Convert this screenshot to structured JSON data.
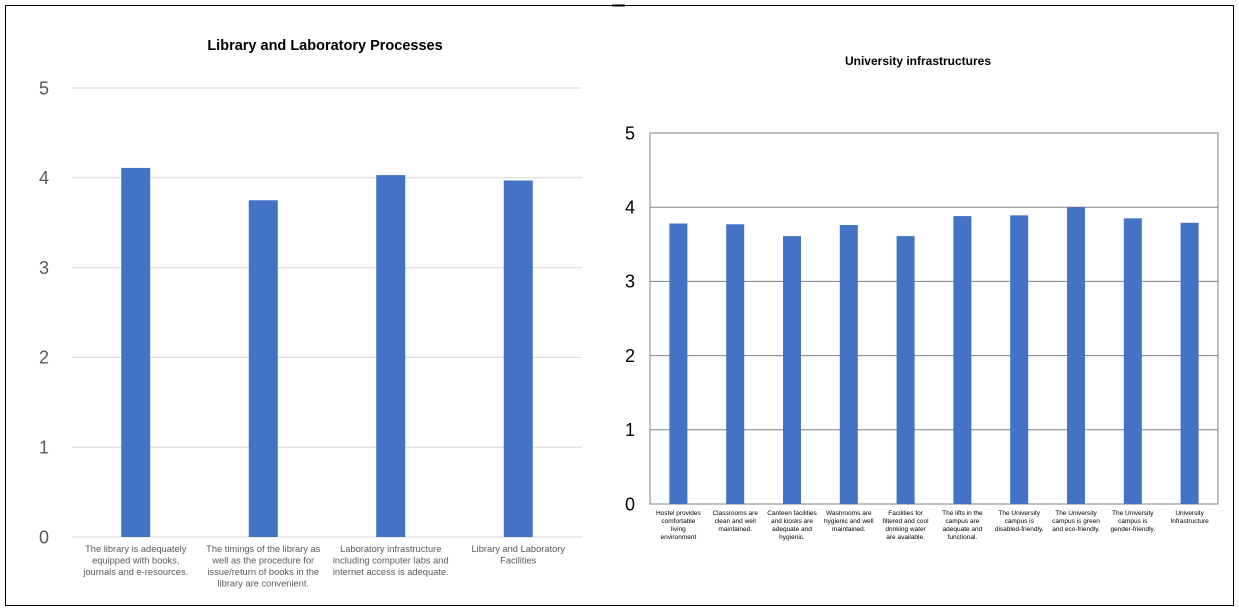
{
  "chart_data": [
    {
      "type": "bar",
      "title": "Library and Laboratory Processes",
      "xlabel": "",
      "ylabel": "",
      "ylim": [
        0,
        5
      ],
      "yticks": [
        0,
        1,
        2,
        3,
        4,
        5
      ],
      "grid": true,
      "legend": "none",
      "color": "#4472C4",
      "categories": [
        [
          "The library is adequately",
          "equipped with books,",
          "journals and e-resources."
        ],
        [
          "The timings of the library as",
          "well as the procedure for",
          "issue/return of books in the",
          "library are convenient."
        ],
        [
          "Laboratory infrastructure",
          "including computer  labs and",
          "internet access is adequate."
        ],
        [
          "Library and Laboratory",
          "Facilities"
        ]
      ],
      "values": [
        4.11,
        3.75,
        4.03,
        3.97
      ]
    },
    {
      "type": "bar",
      "title": "University infrastructures",
      "xlabel": "",
      "ylabel": "",
      "ylim": [
        0,
        5
      ],
      "yticks": [
        0,
        1,
        2,
        3,
        4,
        5
      ],
      "grid": true,
      "legend": "none",
      "color": "#4472C4",
      "categories": [
        [
          "Hostel provides",
          "comfortable",
          "living",
          "environment"
        ],
        [
          "Classrooms are",
          "clean and well",
          "maintained."
        ],
        [
          "Canteen facilities",
          "and kiosks are",
          "adequate and",
          "hygienic."
        ],
        [
          "Washrooms are",
          "hygienic and well",
          "maintained."
        ],
        [
          "Facilities for",
          "filtered and cool",
          "drinking water",
          "are available."
        ],
        [
          "The lifts in the",
          "campus are",
          "adequate and",
          "functional."
        ],
        [
          "The University",
          "campus is",
          "disabled-friendly."
        ],
        [
          "The University",
          "campus is green",
          "and eco-friendly."
        ],
        [
          "The University",
          "campus is",
          "gender-friendly."
        ],
        [
          "University",
          "Infrastructure"
        ]
      ],
      "values": [
        3.78,
        3.77,
        3.61,
        3.76,
        3.61,
        3.88,
        3.89,
        4.0,
        3.85,
        3.79
      ]
    }
  ]
}
